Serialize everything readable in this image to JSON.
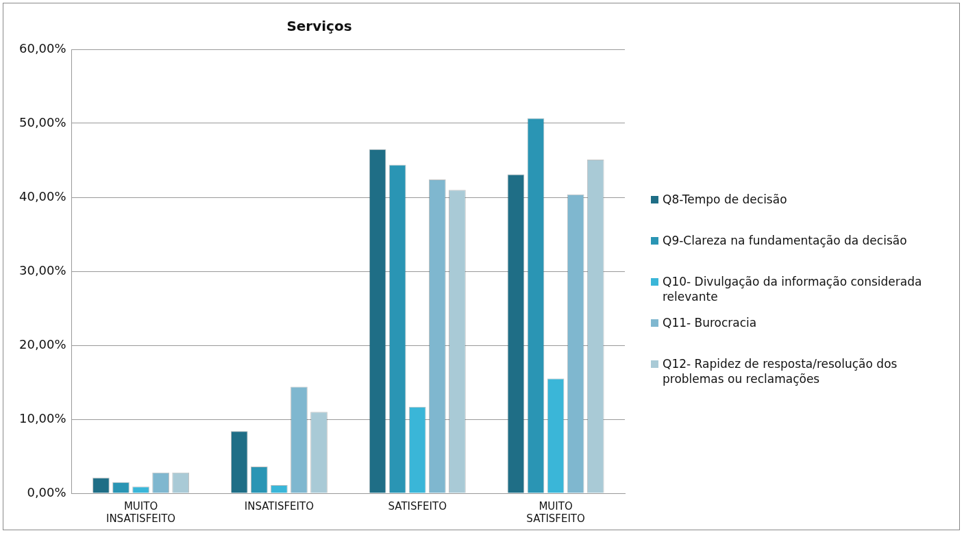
{
  "chart_data": {
    "type": "bar",
    "title": "Serviços",
    "categories": [
      "MUITO INSATISFEITO",
      "INSATISFEITO",
      "SATISFEITO",
      "MUITO SATISFEITO"
    ],
    "series": [
      {
        "name": "Q8-Tempo de decisão",
        "color": "#1f6e86",
        "values": [
          2.1,
          8.4,
          46.5,
          43.1
        ]
      },
      {
        "name": "Q9-Clareza na fundamentação da decisão",
        "color": "#2a95b4",
        "values": [
          1.5,
          3.6,
          44.4,
          50.7
        ]
      },
      {
        "name": "Q10- Divulgação da informação considerada relevante",
        "color": "#3ab6d8",
        "values": [
          0.9,
          1.1,
          11.7,
          15.5
        ]
      },
      {
        "name": "Q11- Burocracia",
        "color": "#7fb7cf",
        "values": [
          2.8,
          14.4,
          42.4,
          40.4
        ]
      },
      {
        "name": "Q12- Rapidez de resposta/resolução dos problemas ou reclamações",
        "color": "#a9cad6",
        "values": [
          2.8,
          11.0,
          41.0,
          45.1
        ]
      }
    ],
    "ylim": [
      0,
      60
    ],
    "yticks": [
      {
        "value": 0,
        "label": "0,00%"
      },
      {
        "value": 10,
        "label": "10,00%"
      },
      {
        "value": 20,
        "label": "20,00%"
      },
      {
        "value": 30,
        "label": "30,00%"
      },
      {
        "value": 40,
        "label": "40,00%"
      },
      {
        "value": 50,
        "label": "50,00%"
      },
      {
        "value": 60,
        "label": "60,00%"
      }
    ],
    "grid": "y",
    "legend": "right"
  }
}
